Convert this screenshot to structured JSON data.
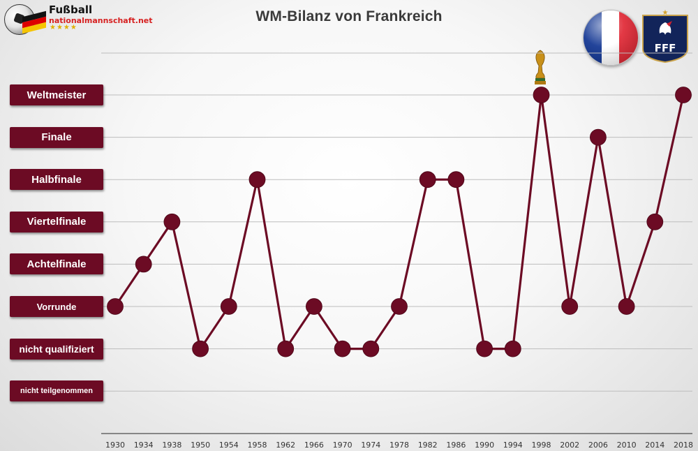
{
  "logo": {
    "name": "Fußball",
    "domain": "nationalmannschaft.net",
    "stars": "★★★★"
  },
  "chart_data": {
    "type": "line",
    "title": "WM-Bilanz von Frankreich",
    "xlabel": "",
    "ylabel": "",
    "categories": [
      "1930",
      "1934",
      "1938",
      "1950",
      "1954",
      "1958",
      "1962",
      "1966",
      "1970",
      "1974",
      "1978",
      "1982",
      "1986",
      "1990",
      "1994",
      "1998",
      "2002",
      "2006",
      "2010",
      "2014",
      "2018"
    ],
    "levels": [
      "nicht teilgenommen",
      "nicht qualifiziert",
      "Vorrunde",
      "Achtelfinale",
      "Viertelfinale",
      "Halbfinale",
      "Finale",
      "Weltmeister"
    ],
    "values": [
      2,
      3,
      4,
      1,
      2,
      5,
      1,
      2,
      1,
      1,
      2,
      5,
      5,
      1,
      1,
      7,
      2,
      6,
      2,
      4,
      7
    ],
    "ylim": [
      0,
      7
    ],
    "grid": true,
    "legend": "none",
    "colors": {
      "line": "#6c0b24",
      "marker": "#6c0b24",
      "label_bg": "#6c0b24",
      "grid": "#bdbdbd",
      "axis": "#666666"
    }
  },
  "flags": {
    "france": {
      "colors": [
        "#0a2f8f",
        "#ffffff",
        "#e02330"
      ]
    },
    "fff_badge": {
      "icon": "fff-crest-icon",
      "text": "FFF",
      "star": "★",
      "colors": {
        "bg": "#12245a",
        "accent": "#d4202c"
      }
    },
    "trophy": {
      "icon": "world-cup-trophy-icon",
      "colors": {
        "gold": "#c8901a"
      }
    }
  }
}
